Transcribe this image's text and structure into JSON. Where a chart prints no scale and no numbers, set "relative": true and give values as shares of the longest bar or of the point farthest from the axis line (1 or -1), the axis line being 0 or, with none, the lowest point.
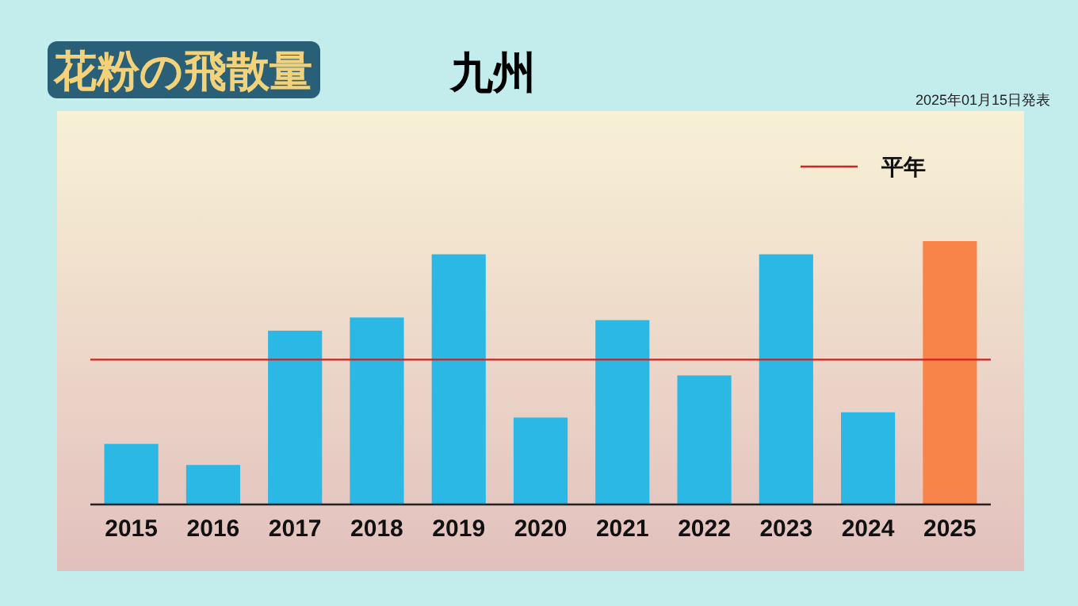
{
  "chart_data": {
    "type": "bar",
    "title": "花粉の飛散量",
    "subtitle": "九州",
    "annotations": [
      "2025年01月15日発表"
    ],
    "categories": [
      "2015",
      "2016",
      "2017",
      "2018",
      "2019",
      "2020",
      "2021",
      "2022",
      "2023",
      "2024",
      "2025"
    ],
    "values": [
      0.23,
      0.15,
      0.66,
      0.71,
      0.95,
      0.33,
      0.7,
      0.49,
      0.95,
      0.35,
      1
    ],
    "colors": [
      "#2bb8e4",
      "#2bb8e4",
      "#2bb8e4",
      "#2bb8e4",
      "#2bb8e4",
      "#2bb8e4",
      "#2bb8e4",
      "#2bb8e4",
      "#2bb8e4",
      "#2bb8e4",
      "#f9844a"
    ],
    "relative": true,
    "ref_lines": [
      {
        "axis": "y",
        "value": 0.55,
        "label": "平年",
        "color": "#d42020"
      }
    ],
    "legend": "top right"
  }
}
